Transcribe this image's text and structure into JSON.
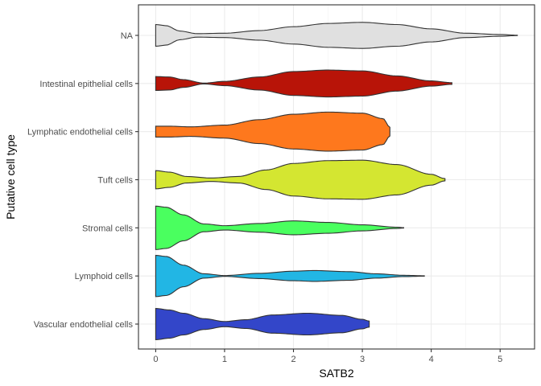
{
  "chart_data": {
    "type": "violin",
    "orientation": "horizontal",
    "xlabel": "SATB2",
    "ylabel": "Putative cell type",
    "xlim": [
      -0.25,
      5.5
    ],
    "x_ticks": [
      0,
      1,
      2,
      3,
      4,
      5
    ],
    "x_tick_labels": [
      "0",
      "1",
      "2",
      "3",
      "4",
      "5"
    ],
    "grid": true,
    "legend": "none",
    "categories": [
      "NA",
      "Intestinal epithelial cells",
      "Lymphatic endothelial cells",
      "Tuft cells",
      "Stromal cells",
      "Lymphoid cells",
      "Vascular endothelial cells"
    ],
    "series": [
      {
        "category": "NA",
        "color": "#e0e0e0",
        "range": [
          0,
          5.25
        ],
        "density": [
          [
            0,
            0.5
          ],
          [
            0.15,
            0.45
          ],
          [
            0.35,
            0.2
          ],
          [
            0.6,
            0.08
          ],
          [
            1.0,
            0.1
          ],
          [
            1.5,
            0.22
          ],
          [
            2.0,
            0.4
          ],
          [
            2.5,
            0.55
          ],
          [
            3.0,
            0.6
          ],
          [
            3.5,
            0.5
          ],
          [
            4.0,
            0.3
          ],
          [
            4.5,
            0.1
          ],
          [
            5.0,
            0.04
          ],
          [
            5.25,
            0.01
          ]
        ]
      },
      {
        "category": "Intestinal epithelial cells",
        "color": "#b81408",
        "range": [
          0,
          4.3
        ],
        "density": [
          [
            0,
            0.32
          ],
          [
            0.2,
            0.3
          ],
          [
            0.4,
            0.18
          ],
          [
            0.7,
            0.02
          ],
          [
            1.0,
            0.1
          ],
          [
            1.5,
            0.3
          ],
          [
            2.0,
            0.55
          ],
          [
            2.5,
            0.62
          ],
          [
            3.0,
            0.58
          ],
          [
            3.5,
            0.35
          ],
          [
            4.0,
            0.12
          ],
          [
            4.3,
            0.04
          ]
        ]
      },
      {
        "category": "Lymphatic endothelial cells",
        "color": "#fe781d",
        "range": [
          0,
          3.4
        ],
        "density": [
          [
            0,
            0.25
          ],
          [
            0.2,
            0.25
          ],
          [
            0.5,
            0.22
          ],
          [
            1.0,
            0.3
          ],
          [
            1.5,
            0.55
          ],
          [
            2.0,
            0.8
          ],
          [
            2.5,
            0.9
          ],
          [
            3.0,
            0.85
          ],
          [
            3.3,
            0.6
          ],
          [
            3.4,
            0.2
          ]
        ]
      },
      {
        "category": "Tuft cells",
        "color": "#d4e631",
        "range": [
          0,
          4.2
        ],
        "density": [
          [
            0,
            0.42
          ],
          [
            0.2,
            0.35
          ],
          [
            0.45,
            0.15
          ],
          [
            0.8,
            0.08
          ],
          [
            1.2,
            0.15
          ],
          [
            1.6,
            0.45
          ],
          [
            2.0,
            0.75
          ],
          [
            2.5,
            0.88
          ],
          [
            3.0,
            0.9
          ],
          [
            3.5,
            0.7
          ],
          [
            4.0,
            0.25
          ],
          [
            4.2,
            0.05
          ]
        ]
      },
      {
        "category": "Stromal cells",
        "color": "#4aff5f",
        "range": [
          0,
          3.6
        ],
        "density": [
          [
            0,
            1.0
          ],
          [
            0.15,
            0.95
          ],
          [
            0.4,
            0.6
          ],
          [
            0.7,
            0.18
          ],
          [
            1.0,
            0.1
          ],
          [
            1.5,
            0.2
          ],
          [
            2.0,
            0.32
          ],
          [
            2.5,
            0.25
          ],
          [
            3.0,
            0.14
          ],
          [
            3.5,
            0.03
          ],
          [
            3.6,
            0.01
          ]
        ]
      },
      {
        "category": "Lymphoid cells",
        "color": "#22b6e4",
        "range": [
          0,
          3.9
        ],
        "density": [
          [
            0,
            0.95
          ],
          [
            0.15,
            0.9
          ],
          [
            0.4,
            0.5
          ],
          [
            0.7,
            0.1
          ],
          [
            1.0,
            0.02
          ],
          [
            1.5,
            0.12
          ],
          [
            2.0,
            0.22
          ],
          [
            2.3,
            0.25
          ],
          [
            2.8,
            0.2
          ],
          [
            3.2,
            0.1
          ],
          [
            3.6,
            0.03
          ],
          [
            3.9,
            0.01
          ]
        ]
      },
      {
        "category": "Vascular endothelial cells",
        "color": "#3346c9",
        "range": [
          0,
          3.1
        ],
        "density": [
          [
            0,
            0.72
          ],
          [
            0.2,
            0.65
          ],
          [
            0.4,
            0.5
          ],
          [
            0.7,
            0.25
          ],
          [
            1.0,
            0.12
          ],
          [
            1.3,
            0.2
          ],
          [
            1.7,
            0.42
          ],
          [
            2.2,
            0.5
          ],
          [
            2.7,
            0.4
          ],
          [
            3.0,
            0.22
          ],
          [
            3.1,
            0.14
          ]
        ]
      }
    ]
  }
}
